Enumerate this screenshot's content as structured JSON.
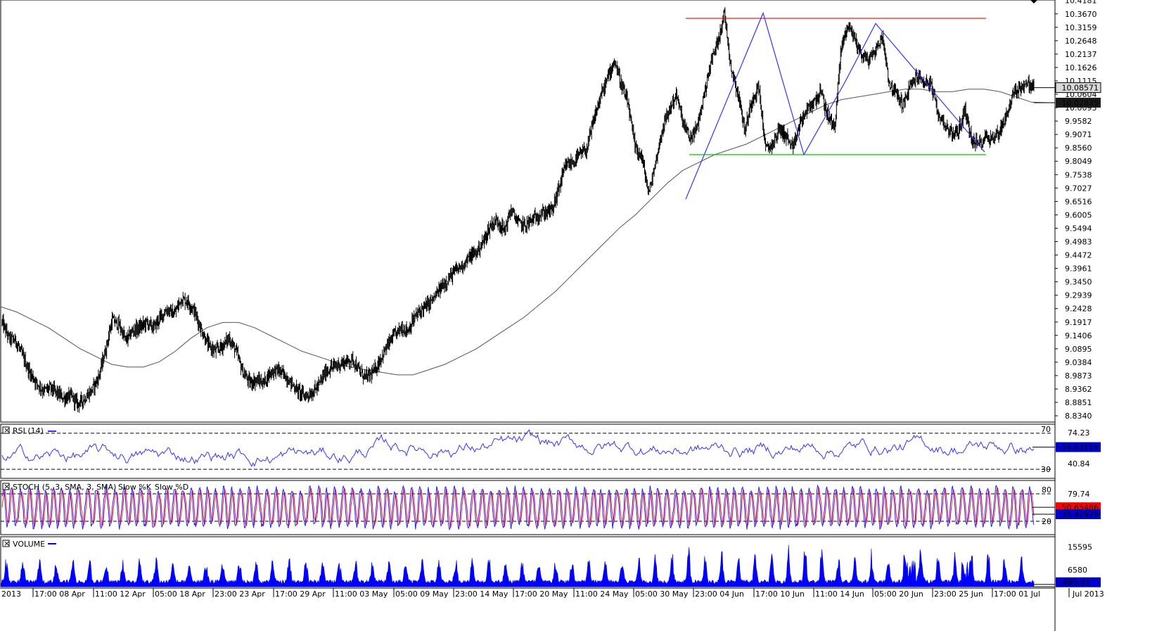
{
  "chart_data": {
    "type": "line",
    "instrument_note": "",
    "price_panel": {
      "y_ticks": [
        "10.3670",
        "10.3159",
        "10.2648",
        "10.2137",
        "10.1626",
        "10.1115",
        "10.0604",
        "10.0093",
        "9.9582",
        "9.9071",
        "9.8560",
        "9.8049",
        "9.7538",
        "9.7027",
        "9.6516",
        "9.6005",
        "9.5494",
        "9.4983",
        "9.4472",
        "9.3961",
        "9.3450",
        "9.2939",
        "9.2428",
        "9.1917",
        "9.1406",
        "9.0895",
        "9.0384",
        "8.9873",
        "8.9362",
        "8.8851",
        "8.8340"
      ],
      "top_tick_partial": "10.4181",
      "ylim": [
        8.81,
        10.42
      ],
      "current_price_label": "10.08571",
      "ma_label": "10.02835",
      "close_values": [
        9.19,
        9.13,
        9.12,
        9.06,
        9.0,
        8.96,
        8.93,
        8.94,
        8.92,
        8.9,
        8.91,
        8.88,
        8.9,
        8.93,
        8.98,
        9.08,
        9.2,
        9.18,
        9.12,
        9.16,
        9.17,
        9.19,
        9.17,
        9.21,
        9.24,
        9.22,
        9.28,
        9.27,
        9.23,
        9.16,
        9.1,
        9.08,
        9.1,
        9.13,
        9.08,
        9.0,
        8.96,
        8.97,
        8.96,
        9.0,
        9.01,
        8.99,
        8.96,
        8.93,
        8.91,
        8.92,
        8.95,
        9.0,
        9.02,
        9.03,
        9.04,
        9.05,
        9.0,
        8.98,
        9.0,
        9.05,
        9.1,
        9.14,
        9.17,
        9.16,
        9.21,
        9.24,
        9.26,
        9.29,
        9.33,
        9.36,
        9.39,
        9.41,
        9.44,
        9.46,
        9.5,
        9.56,
        9.58,
        9.54,
        9.62,
        9.57,
        9.56,
        9.58,
        9.6,
        9.61,
        9.62,
        9.71,
        9.79,
        9.8,
        9.83,
        9.85,
        9.96,
        10.05,
        10.12,
        10.19,
        10.1,
        10.02,
        9.86,
        9.82,
        9.68,
        9.8,
        9.93,
        10.0,
        10.06,
        9.95,
        9.89,
        9.93,
        10.05,
        10.18,
        10.26,
        10.37,
        10.16,
        10.06,
        9.92,
        10.04,
        10.09,
        9.85,
        9.87,
        9.93,
        9.9,
        9.85,
        9.95,
        10.0,
        10.03,
        10.07,
        9.98,
        9.93,
        10.24,
        10.33,
        10.27,
        10.21,
        10.19,
        10.23,
        10.28,
        10.1,
        10.06,
        10.02,
        10.09,
        10.13,
        10.11,
        10.1,
        9.99,
        9.95,
        9.91,
        9.92,
        10.0,
        9.88,
        9.87,
        9.9,
        9.89,
        9.92,
        9.98,
        10.06,
        10.09,
        10.1,
        10.09
      ],
      "ma_values": [
        9.25,
        9.23,
        9.2,
        9.17,
        9.13,
        9.09,
        9.06,
        9.03,
        9.02,
        9.02,
        9.04,
        9.08,
        9.13,
        9.17,
        9.19,
        9.19,
        9.17,
        9.14,
        9.11,
        9.08,
        9.06,
        9.04,
        9.02,
        9.01,
        9.0,
        8.99,
        8.99,
        9.01,
        9.03,
        9.06,
        9.09,
        9.13,
        9.17,
        9.21,
        9.26,
        9.31,
        9.37,
        9.43,
        9.49,
        9.55,
        9.6,
        9.66,
        9.72,
        9.77,
        9.8,
        9.83,
        9.85,
        9.87,
        9.9,
        9.93,
        9.96,
        9.99,
        10.02,
        10.04,
        10.05,
        10.06,
        10.07,
        10.08,
        10.08,
        10.07,
        10.07,
        10.08,
        10.08,
        10.07,
        10.05,
        10.03
      ],
      "resistance_level": 10.35,
      "support_level": 9.83,
      "pattern_line_points": [
        [
          975,
          9.66
        ],
        [
          1085,
          10.37
        ],
        [
          1143,
          9.83
        ],
        [
          1200,
          10.1
        ],
        [
          1245,
          10.33
        ],
        [
          1400,
          9.84
        ]
      ]
    },
    "x_tick_labels": [
      "2013",
      "17:00 08 Apr",
      "11:00 12 Apr",
      "05:00 18 Apr",
      "23:00 23 Apr",
      "17:00 29 Apr",
      "11:00 03 May",
      "05:00 09 May",
      "23:00 14 May",
      "17:00 20 May",
      "11:00 24 May",
      "05:00 30 May",
      "23:00 04 Jun",
      "17:00 10 Jun",
      "11:00 14 Jun",
      "05:00 20 Jun",
      "23:00 25 Jun",
      "17:00 01 Jul",
      "Jul 2013"
    ],
    "rsi_panel": {
      "title": "RSI (14)",
      "levels": [
        "70",
        "30"
      ],
      "right_ticks": [
        "74.23",
        "40.84"
      ],
      "current_value": "54.63114",
      "ylim": [
        20,
        80
      ]
    },
    "stoch_panel": {
      "title": "STOCH (5, 3, SMA, 3, SMA)",
      "k_label": "Slow %K",
      "d_label": "Slow %D",
      "levels": [
        "80",
        "20"
      ],
      "right_ticks": [
        "79.74"
      ],
      "k_value": "50.65486",
      "d_value": "35.42979",
      "ylim": [
        0,
        100
      ],
      "colors": {
        "k": "#2020ff",
        "d": "#ff2020"
      }
    },
    "volume_panel": {
      "title": "VOLUME",
      "right_ticks": [
        "15595",
        "6580"
      ],
      "current_value": "895.91",
      "ylim": [
        0,
        19000
      ],
      "color": "#0000ff"
    },
    "colors": {
      "price": "#000000",
      "ma": "#555555",
      "resistance": "#ff0000",
      "support": "#00cc00",
      "pattern": "#3333ff",
      "rsi": "#3333ff",
      "panel_border": "#000000",
      "label_dark_bg": "#1a1a1a",
      "label_red_bg": "#ff0000",
      "label_blue_bg": "#0000cc"
    }
  }
}
